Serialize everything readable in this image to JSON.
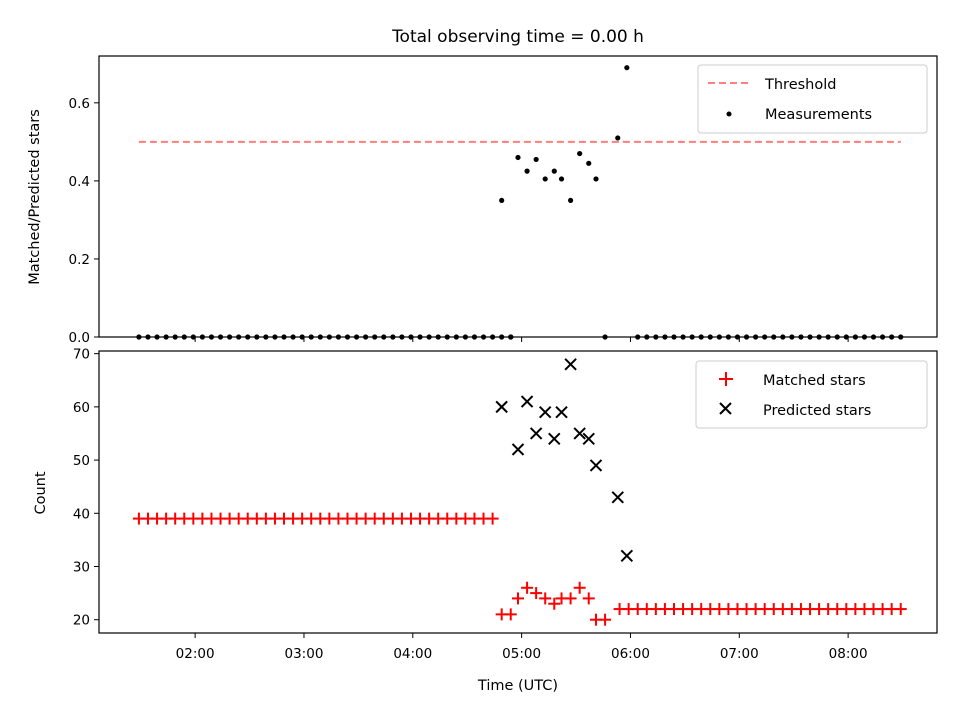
{
  "chart_data": {
    "title": "Total observing time = 0.00 h",
    "xlabel": "Time (UTC)",
    "xticks": [
      "02:00",
      "03:00",
      "04:00",
      "05:00",
      "06:00",
      "07:00",
      "08:00"
    ],
    "xlim": [
      "01:07",
      "08:49"
    ],
    "panels": [
      {
        "type": "scatter",
        "ylabel": "Matched/Predicted stars",
        "ylim": [
          0,
          0.72
        ],
        "yticks": [
          "0.0",
          "0.2",
          "0.4",
          "0.6"
        ],
        "legend_position": "top-right",
        "threshold": {
          "name": "Threshold",
          "y": 0.5,
          "x": [
            "01:29",
            "08:29"
          ],
          "color": "#ff7f7f"
        },
        "measurements": {
          "name": "Measurements",
          "color": "#000000",
          "zero_times": {
            "start": "01:29",
            "step_min": 5,
            "end": "08:29",
            "nonzero_excluded": [
              "04:50",
              "04:59",
              "05:04",
              "05:09",
              "05:14",
              "05:19",
              "05:24",
              "05:29",
              "05:34",
              "05:39",
              "05:44",
              "05:49",
              "05:54",
              "05:59"
            ]
          },
          "points": [
            {
              "x": "04:49",
              "y": 0.35
            },
            {
              "x": "04:58",
              "y": 0.46
            },
            {
              "x": "05:03",
              "y": 0.425
            },
            {
              "x": "05:08",
              "y": 0.455
            },
            {
              "x": "05:13",
              "y": 0.405
            },
            {
              "x": "05:18",
              "y": 0.425
            },
            {
              "x": "05:22",
              "y": 0.405
            },
            {
              "x": "05:27",
              "y": 0.35
            },
            {
              "x": "05:32",
              "y": 0.47
            },
            {
              "x": "05:37",
              "y": 0.445
            },
            {
              "x": "05:41",
              "y": 0.405
            },
            {
              "x": "05:53",
              "y": 0.51
            },
            {
              "x": "05:58",
              "y": 0.69
            },
            {
              "x": "04:54",
              "y": 0
            },
            {
              "x": "05:46",
              "y": 0
            }
          ]
        }
      },
      {
        "type": "scatter",
        "ylabel": "Count",
        "ylim": [
          17.5,
          70.5
        ],
        "yticks": [
          "20",
          "30",
          "40",
          "50",
          "60",
          "70"
        ],
        "legend_position": "top-right",
        "matched": {
          "name": "Matched stars",
          "color": "#ff0000",
          "runs": [
            {
              "start": "01:29",
              "end": "04:44",
              "step_min": 5,
              "y": 39
            },
            {
              "start": "05:54",
              "end": "08:29",
              "step_min": 5,
              "y": 22
            }
          ],
          "points": [
            {
              "x": "04:49",
              "y": 21
            },
            {
              "x": "04:54",
              "y": 21
            },
            {
              "x": "04:58",
              "y": 24
            },
            {
              "x": "05:03",
              "y": 26
            },
            {
              "x": "05:08",
              "y": 25
            },
            {
              "x": "05:13",
              "y": 24
            },
            {
              "x": "05:18",
              "y": 23
            },
            {
              "x": "05:22",
              "y": 24
            },
            {
              "x": "05:27",
              "y": 24
            },
            {
              "x": "05:32",
              "y": 26
            },
            {
              "x": "05:37",
              "y": 24
            },
            {
              "x": "05:41",
              "y": 20
            },
            {
              "x": "05:46",
              "y": 20
            }
          ]
        },
        "predicted": {
          "name": "Predicted stars",
          "color": "#000000",
          "points": [
            {
              "x": "04:49",
              "y": 60
            },
            {
              "x": "04:58",
              "y": 52
            },
            {
              "x": "05:03",
              "y": 61
            },
            {
              "x": "05:08",
              "y": 55
            },
            {
              "x": "05:13",
              "y": 59
            },
            {
              "x": "05:18",
              "y": 54
            },
            {
              "x": "05:22",
              "y": 59
            },
            {
              "x": "05:27",
              "y": 68
            },
            {
              "x": "05:32",
              "y": 55
            },
            {
              "x": "05:37",
              "y": 54
            },
            {
              "x": "05:41",
              "y": 49
            },
            {
              "x": "05:53",
              "y": 43
            },
            {
              "x": "05:58",
              "y": 32
            }
          ]
        }
      }
    ]
  }
}
